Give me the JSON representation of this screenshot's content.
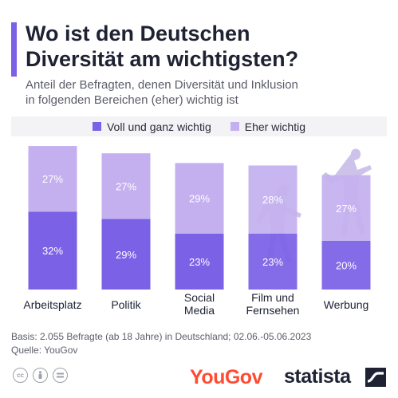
{
  "header": {
    "title_line1": "Wo ist den Deutschen",
    "title_line2": "Diversität am wichtigsten?",
    "subtitle_line1": "Anteil der Befragten, denen Diversität und Inklusion",
    "subtitle_line2": "in folgenden Bereichen (eher) wichtig ist"
  },
  "legend": {
    "items": [
      {
        "label": "Voll und ganz wichtig",
        "color": "#7b61e6"
      },
      {
        "label": "Eher wichtig",
        "color": "#c4b0ef"
      }
    ]
  },
  "chart_data": {
    "type": "bar",
    "stacked": true,
    "categories": [
      [
        "Arbeitsplatz"
      ],
      [
        "Politik"
      ],
      [
        "Social",
        "Media"
      ],
      [
        "Film und",
        "Fernsehen"
      ],
      [
        "Werbung"
      ]
    ],
    "series": [
      {
        "name": "Voll und ganz wichtig",
        "values": [
          32,
          29,
          23,
          23,
          20
        ],
        "color": "#7b61e6"
      },
      {
        "name": "Eher wichtig",
        "values": [
          27,
          27,
          29,
          28,
          27
        ],
        "color": "#c4b0ef"
      }
    ],
    "value_suffix": "%",
    "ylim": [
      0,
      59
    ],
    "grid": false
  },
  "footer": {
    "basis": "Basis: 2.055 Befragte (ab 18 Jahre) in Deutschland; 02.06.-05.06.2023",
    "source": "Quelle: YouGov",
    "license_icons": [
      "cc-icon",
      "person-icon",
      "equal-icon"
    ],
    "yougov_logo": "YouGov",
    "statista_logo": "statista"
  }
}
